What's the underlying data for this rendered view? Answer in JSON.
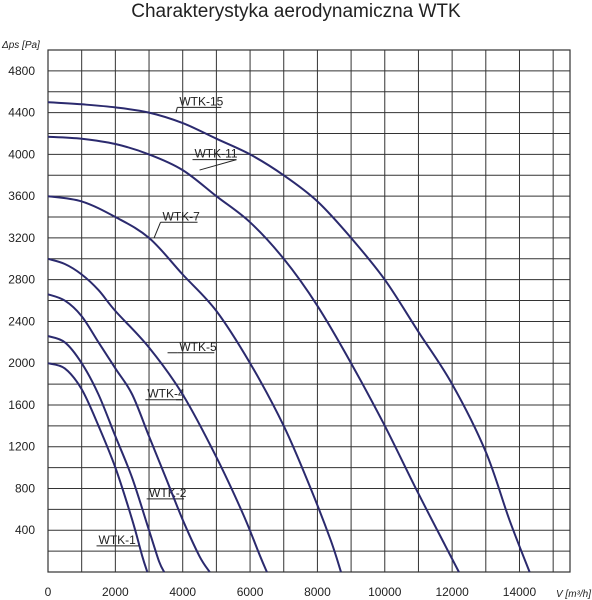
{
  "chart_data": {
    "type": "line",
    "title": "Charakterystyka aerodynamiczna WTK",
    "xlabel": "V [m³/h]",
    "ylabel": "Δps [Pa]",
    "xlim": [
      0,
      15500
    ],
    "ylim": [
      0,
      5000
    ],
    "x_ticks": [
      "0",
      "2000",
      "4000",
      "6000",
      "8000",
      "10000",
      "12000",
      "14000"
    ],
    "x_tick_values": [
      0,
      2000,
      4000,
      6000,
      8000,
      10000,
      12000,
      14000
    ],
    "y_ticks": [
      "400",
      "800",
      "1200",
      "1600",
      "2000",
      "2400",
      "2800",
      "3200",
      "3600",
      "4000",
      "4400",
      "4800"
    ],
    "y_tick_values": [
      400,
      800,
      1200,
      1600,
      2000,
      2400,
      2800,
      3200,
      3600,
      4000,
      4400,
      4800
    ],
    "grid": true,
    "line_color": "#2b2a6e",
    "series": [
      {
        "name": "WTK-1",
        "label_at": [
          1500,
          250
        ],
        "leader_to": [
          2700,
          250
        ],
        "points": [
          [
            0,
            2000
          ],
          [
            500,
            1950
          ],
          [
            1000,
            1750
          ],
          [
            1500,
            1400
          ],
          [
            2000,
            1000
          ],
          [
            2500,
            500
          ],
          [
            2800,
            150
          ],
          [
            2950,
            0
          ]
        ]
      },
      {
        "name": "WTK-2",
        "label_at": [
          3000,
          700
        ],
        "leader_to": [
          2930,
          700
        ],
        "points": [
          [
            0,
            2260
          ],
          [
            500,
            2200
          ],
          [
            1000,
            2000
          ],
          [
            1500,
            1700
          ],
          [
            2000,
            1300
          ],
          [
            2500,
            900
          ],
          [
            3000,
            400
          ],
          [
            3300,
            100
          ],
          [
            3450,
            0
          ]
        ]
      },
      {
        "name": "WTK-4",
        "label_at": [
          2950,
          1650
        ],
        "leader_to": [
          3800,
          1650
        ],
        "points": [
          [
            0,
            2660
          ],
          [
            500,
            2600
          ],
          [
            1000,
            2450
          ],
          [
            1500,
            2200
          ],
          [
            2000,
            1950
          ],
          [
            2500,
            1700
          ],
          [
            3000,
            1300
          ],
          [
            3500,
            900
          ],
          [
            4000,
            500
          ],
          [
            4500,
            150
          ],
          [
            4800,
            0
          ]
        ]
      },
      {
        "name": "WTK-5",
        "label_at": [
          3900,
          2100
        ],
        "leader_to": [
          3550,
          2100
        ],
        "points": [
          [
            0,
            3000
          ],
          [
            500,
            2950
          ],
          [
            1000,
            2850
          ],
          [
            1500,
            2700
          ],
          [
            2000,
            2500
          ],
          [
            3000,
            2150
          ],
          [
            4000,
            1700
          ],
          [
            5000,
            1100
          ],
          [
            5800,
            550
          ],
          [
            6300,
            150
          ],
          [
            6500,
            0
          ]
        ]
      },
      {
        "name": "WTK-7",
        "label_at": [
          3400,
          3350
        ],
        "leader_to": [
          3150,
          3200
        ],
        "points": [
          [
            0,
            3600
          ],
          [
            1000,
            3550
          ],
          [
            2000,
            3400
          ],
          [
            3000,
            3200
          ],
          [
            4000,
            2850
          ],
          [
            5000,
            2500
          ],
          [
            6000,
            2000
          ],
          [
            7000,
            1400
          ],
          [
            7800,
            800
          ],
          [
            8400,
            300
          ],
          [
            8700,
            0
          ]
        ]
      },
      {
        "name": "WTK-11",
        "label_at": [
          4350,
          3950
        ],
        "leader_to": [
          4500,
          3850
        ],
        "points": [
          [
            0,
            4170
          ],
          [
            1000,
            4150
          ],
          [
            2000,
            4100
          ],
          [
            3000,
            4000
          ],
          [
            4000,
            3850
          ],
          [
            5000,
            3600
          ],
          [
            6000,
            3350
          ],
          [
            7000,
            3000
          ],
          [
            8000,
            2550
          ],
          [
            9000,
            2000
          ],
          [
            10000,
            1400
          ],
          [
            11000,
            750
          ],
          [
            11800,
            250
          ],
          [
            12200,
            0
          ]
        ]
      },
      {
        "name": "WTK-15",
        "label_at": [
          3900,
          4450
        ],
        "leader_to": [
          3800,
          4400
        ],
        "points": [
          [
            0,
            4500
          ],
          [
            1000,
            4480
          ],
          [
            2000,
            4450
          ],
          [
            3000,
            4400
          ],
          [
            4000,
            4300
          ],
          [
            5000,
            4150
          ],
          [
            6000,
            4000
          ],
          [
            7000,
            3800
          ],
          [
            8000,
            3550
          ],
          [
            9000,
            3200
          ],
          [
            10000,
            2800
          ],
          [
            11000,
            2300
          ],
          [
            12000,
            1800
          ],
          [
            13000,
            1150
          ],
          [
            13700,
            500
          ],
          [
            14300,
            0
          ]
        ]
      }
    ]
  }
}
